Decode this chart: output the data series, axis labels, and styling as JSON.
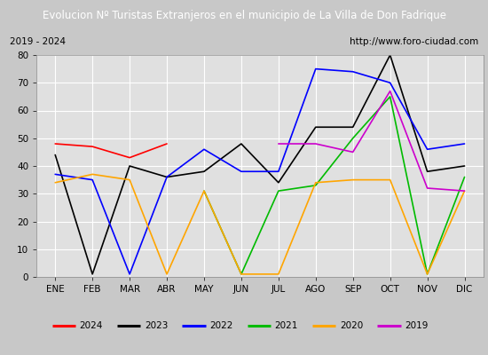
{
  "title": "Evolucion Nº Turistas Extranjeros en el municipio de La Villa de Don Fadrique",
  "subtitle_left": "2019 - 2024",
  "subtitle_right": "http://www.foro-ciudad.com",
  "months": [
    "ENE",
    "FEB",
    "MAR",
    "ABR",
    "MAY",
    "JUN",
    "JUL",
    "AGO",
    "SEP",
    "OCT",
    "NOV",
    "DIC"
  ],
  "series": {
    "2024": [
      48,
      47,
      43,
      48,
      null,
      null,
      null,
      null,
      null,
      null,
      null,
      null
    ],
    "2023": [
      44,
      1,
      40,
      36,
      38,
      48,
      34,
      54,
      54,
      80,
      38,
      40
    ],
    "2022": [
      37,
      35,
      1,
      36,
      46,
      38,
      38,
      75,
      74,
      70,
      46,
      48
    ],
    "2021": [
      null,
      null,
      null,
      null,
      31,
      1,
      31,
      33,
      50,
      65,
      1,
      36
    ],
    "2020": [
      34,
      37,
      35,
      1,
      31,
      1,
      1,
      34,
      35,
      35,
      1,
      31
    ],
    "2019": [
      null,
      null,
      null,
      null,
      null,
      null,
      48,
      48,
      45,
      67,
      32,
      31
    ]
  },
  "colors": {
    "2024": "#ff0000",
    "2023": "#000000",
    "2022": "#0000ff",
    "2021": "#00bb00",
    "2020": "#ffa500",
    "2019": "#cc00cc"
  },
  "ylim": [
    0,
    80
  ],
  "yticks": [
    0,
    10,
    20,
    30,
    40,
    50,
    60,
    70,
    80
  ],
  "title_bg": "#4472c4",
  "title_color": "#ffffff",
  "plot_bg": "#e0e0e0",
  "grid_color": "#ffffff",
  "legend_order": [
    "2024",
    "2023",
    "2022",
    "2021",
    "2020",
    "2019"
  ],
  "fig_bg": "#c8c8c8"
}
